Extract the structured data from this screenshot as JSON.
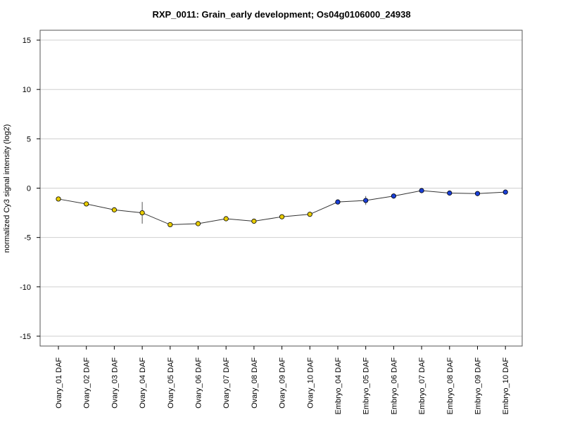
{
  "chart_data": {
    "type": "line",
    "title": "RXP_0011: Grain_early development; Os04g0106000_24938",
    "xlabel": "",
    "ylabel": "normalized Cy3 signal intensity (log2)",
    "ylim": [
      -16,
      16
    ],
    "yticks": [
      15,
      10,
      5,
      0,
      -5,
      -10,
      -15
    ],
    "grid": true,
    "categories": [
      "Ovary_01 DAF",
      "Ovary_02 DAF",
      "Ovary_03 DAF",
      "Ovary_04 DAF",
      "Ovary_05 DAF",
      "Ovary_06 DAF",
      "Ovary_07 DAF",
      "Ovary_08 DAF",
      "Ovary_09 DAF",
      "Ovary_10 DAF",
      "Embryo_04 DAF",
      "Embryo_05 DAF",
      "Embryo_06 DAF",
      "Embryo_07 DAF",
      "Embryo_08 DAF",
      "Embryo_09 DAF",
      "Embryo_10 DAF"
    ],
    "series": [
      {
        "values": [
          -1.1,
          -1.6,
          -2.2,
          -2.5,
          -3.7,
          -3.6,
          -3.1,
          -3.35,
          -2.9,
          -2.65,
          -1.4,
          -1.25,
          -0.8,
          -0.25,
          -0.5,
          -0.55,
          -0.4
        ],
        "errors": [
          0.15,
          0.15,
          0.2,
          1.1,
          0.15,
          0.15,
          0.15,
          0.2,
          0.15,
          0.25,
          0.15,
          0.45,
          0.25,
          0.1,
          0.15,
          0.15,
          0.1
        ],
        "colors": [
          "#e8cc00",
          "#e8cc00",
          "#e8cc00",
          "#e8cc00",
          "#e8cc00",
          "#e8cc00",
          "#e8cc00",
          "#e8cc00",
          "#e8cc00",
          "#e8cc00",
          "#1a3fd6",
          "#1a3fd6",
          "#1a3fd6",
          "#1a3fd6",
          "#1a3fd6",
          "#1a3fd6",
          "#1a3fd6"
        ]
      }
    ]
  }
}
